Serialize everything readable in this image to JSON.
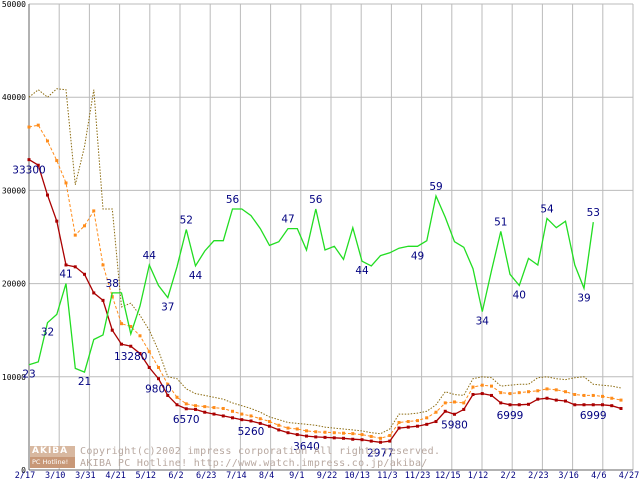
{
  "watermark": {
    "logo_top": "AKIBA",
    "logo_bottom": "PC Hotline!",
    "line1": "Copyright(c)2002 impress corporation All rights reserved.",
    "line2": "AKIBA PC Hotline! http://www.watch.impress.co.jp/akiba/"
  },
  "colors": {
    "green": "#22dd22",
    "red": "#aa0000",
    "orange": "#ff8c1a",
    "olive": "#8b6b10",
    "grid": "#bbbbbb",
    "label": "#000080"
  },
  "chart_data": {
    "type": "line",
    "title": "",
    "xlabel": "",
    "ylabel": "",
    "ylim": [
      0,
      50000
    ],
    "yticks": [
      0,
      10000,
      20000,
      30000,
      40000,
      50000
    ],
    "grid": true,
    "x_tick_labels": [
      "2/17",
      "3/10",
      "3/31",
      "4/21",
      "5/12",
      "6/2",
      "6/23",
      "7/14",
      "8/4",
      "9/1",
      "9/22",
      "10/13",
      "11/3",
      "11/23",
      "12/15",
      "1/12",
      "2/2",
      "2/23",
      "3/16",
      "4/6",
      "4/27"
    ],
    "series": [
      {
        "name": "red",
        "style": "solid-marker",
        "values": [
          33300,
          32700,
          29500,
          26700,
          22000,
          21800,
          21000,
          19000,
          18200,
          15000,
          13500,
          13280,
          12500,
          11000,
          9800,
          8000,
          7000,
          6570,
          6500,
          6200,
          6000,
          5800,
          5600,
          5400,
          5260,
          5000,
          4700,
          4300,
          4000,
          3800,
          3640,
          3550,
          3500,
          3450,
          3400,
          3300,
          3250,
          3100,
          2977,
          3100,
          4500,
          4600,
          4700,
          4900,
          5200,
          6300,
          5980,
          6500,
          8100,
          8200,
          8000,
          7200,
          6999,
          7000,
          7050,
          7600,
          7700,
          7500,
          7400,
          6999,
          7000,
          6999,
          7000,
          6900,
          6600
        ]
      },
      {
        "name": "orange",
        "style": "dashed-marker",
        "values": [
          36800,
          37000,
          35300,
          33200,
          30800,
          25200,
          26200,
          27800,
          22000,
          18600,
          15700,
          15400,
          14400,
          12700,
          11000,
          9200,
          7800,
          7100,
          6900,
          6800,
          6700,
          6600,
          6300,
          6000,
          5800,
          5500,
          5200,
          4800,
          4500,
          4400,
          4200,
          4100,
          4050,
          4000,
          3950,
          3900,
          3800,
          3600,
          3400,
          3700,
          5100,
          5200,
          5300,
          5600,
          6200,
          7200,
          7300,
          7200,
          8900,
          9100,
          9000,
          8300,
          8200,
          8300,
          8400,
          8500,
          8700,
          8600,
          8400,
          8100,
          8000,
          8000,
          7900,
          7700,
          7500
        ]
      },
      {
        "name": "olive",
        "style": "dotted",
        "values": [
          40000,
          40800,
          40000,
          40900,
          40800,
          30600,
          34700,
          40800,
          28000,
          28000,
          17500,
          17900,
          16600,
          15000,
          12800,
          10000,
          9800,
          8700,
          8200,
          8000,
          7800,
          7600,
          7200,
          6900,
          6600,
          6200,
          5700,
          5400,
          5100,
          5000,
          4900,
          4800,
          4600,
          4500,
          4400,
          4300,
          4200,
          4000,
          3900,
          4400,
          6000,
          6000,
          6100,
          6300,
          7000,
          8400,
          8100,
          8000,
          9800,
          10000,
          9900,
          9000,
          9100,
          9200,
          9200,
          9900,
          10000,
          9800,
          9700,
          9900,
          10000,
          9200,
          9100,
          9000,
          8800
        ]
      },
      {
        "name": "green",
        "style": "solid",
        "values": [
          11300,
          11600,
          15800,
          16700,
          20000,
          10900,
          10500,
          14000,
          14500,
          19000,
          19000,
          14600,
          17600,
          22000,
          19800,
          18500,
          21800,
          25800,
          21900,
          23500,
          24600,
          24600,
          28000,
          28000,
          27300,
          25900,
          24100,
          24500,
          25900,
          25900,
          23600,
          28000,
          23600,
          24000,
          22600,
          26000,
          22400,
          21900,
          23000,
          23300,
          23800,
          24000,
          24000,
          24600,
          29400,
          27100,
          24500,
          23900,
          21600,
          17000,
          21400,
          25600,
          21000,
          19800,
          22700,
          22000,
          27000,
          26000,
          26700,
          22000,
          19500,
          26600
        ]
      }
    ],
    "annotations": [
      {
        "text": "33300",
        "series": "red",
        "index": 0
      },
      {
        "text": "23",
        "series": "green",
        "index": 0
      },
      {
        "text": "32",
        "series": "green",
        "index": 2
      },
      {
        "text": "41",
        "series": "green",
        "index": 4
      },
      {
        "text": "21",
        "series": "green",
        "index": 6
      },
      {
        "text": "38",
        "series": "green",
        "index": 9
      },
      {
        "text": "13280",
        "series": "red",
        "index": 11
      },
      {
        "text": "44",
        "series": "green",
        "index": 13
      },
      {
        "text": "9800",
        "series": "red",
        "index": 14
      },
      {
        "text": "37",
        "series": "green",
        "index": 15
      },
      {
        "text": "52",
        "series": "green",
        "index": 17
      },
      {
        "text": "6570",
        "series": "red",
        "index": 17
      },
      {
        "text": "44",
        "series": "green",
        "index": 18
      },
      {
        "text": "56",
        "series": "green",
        "index": 22
      },
      {
        "text": "5260",
        "series": "red",
        "index": 24
      },
      {
        "text": "47",
        "series": "green",
        "index": 28
      },
      {
        "text": "3640",
        "series": "red",
        "index": 30
      },
      {
        "text": "56",
        "series": "green",
        "index": 31
      },
      {
        "text": "44",
        "series": "green",
        "index": 36
      },
      {
        "text": "2977",
        "series": "red",
        "index": 38
      },
      {
        "text": "49",
        "series": "green",
        "index": 42
      },
      {
        "text": "59",
        "series": "green",
        "index": 44
      },
      {
        "text": "5980",
        "series": "red",
        "index": 46
      },
      {
        "text": "34",
        "series": "green",
        "index": 49
      },
      {
        "text": "51",
        "series": "green",
        "index": 51
      },
      {
        "text": "6999",
        "series": "red",
        "index": 52
      },
      {
        "text": "40",
        "series": "green",
        "index": 53
      },
      {
        "text": "54",
        "series": "green",
        "index": 56
      },
      {
        "text": "39",
        "series": "green",
        "index": 60
      },
      {
        "text": "6999",
        "series": "red",
        "index": 61
      },
      {
        "text": "53",
        "series": "green",
        "index": 61
      }
    ]
  }
}
